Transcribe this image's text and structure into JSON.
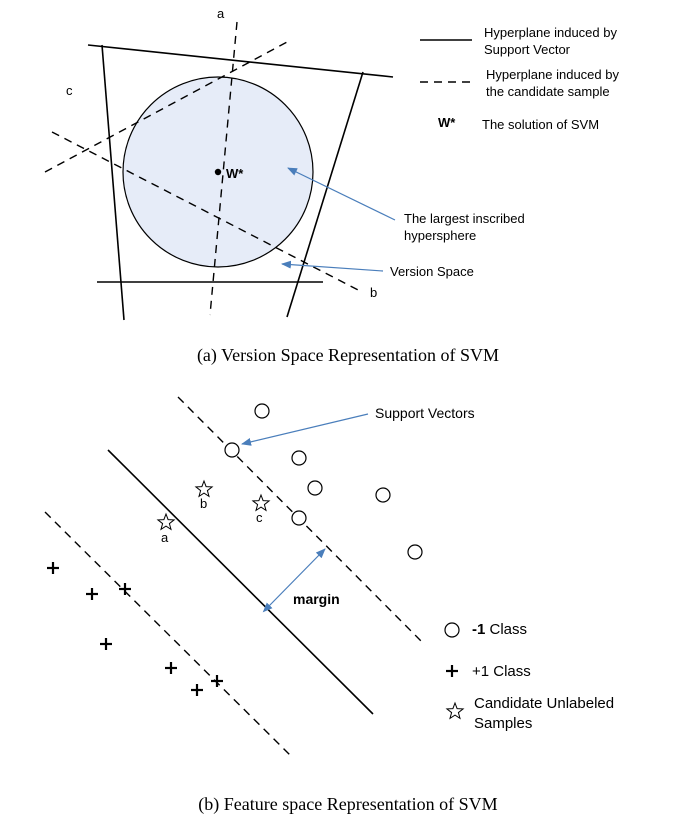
{
  "panel_a": {
    "label_a": "a",
    "label_b": "b",
    "label_c": "c",
    "w_star": "W*",
    "legend": {
      "solid_line": [
        "Hyperplane induced by",
        "Support Vector"
      ],
      "dashed_line": [
        "Hyperplane induced by",
        "the candidate sample"
      ],
      "w_symbol": "W*",
      "w_text": "The solution of SVM"
    },
    "annotation_sphere": [
      "The largest  inscribed",
      "hypersphere"
    ],
    "annotation_version_space": "Version Space",
    "caption": "(a) Version Space Representation of SVM",
    "colors": {
      "sphere_fill": "#e6ecf8",
      "arrow": "#4a7ebb"
    }
  },
  "panel_b": {
    "support_vectors_label": "Support Vectors",
    "margin_label": "margin",
    "candidate_labels": {
      "a": "a",
      "b": "b",
      "c": "c"
    },
    "legend": {
      "neg_class_value": "-1",
      "neg_class_word": "Class",
      "pos_class": "+1 Class",
      "candidates": [
        "Candidate Unlabeled",
        "Samples"
      ]
    },
    "caption": "(b) Feature space Representation of SVM"
  }
}
